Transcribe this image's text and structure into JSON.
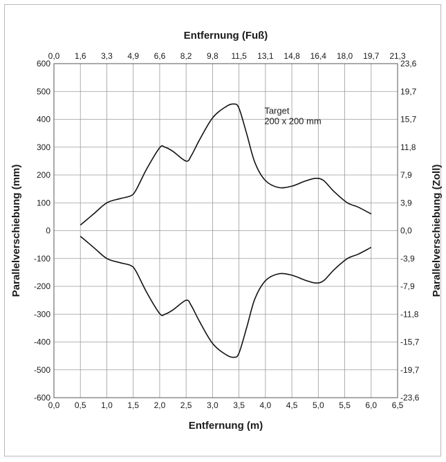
{
  "chart_data": {
    "type": "line",
    "title": "",
    "xlabel": "Entfernung (m)",
    "ylabel": "Parallelverschiebung (mm)",
    "x2label": "Entfernung (Fuß)",
    "y2label": "Parallelverschiebung (Zoll)",
    "xlim": [
      0,
      6.5
    ],
    "ylim": [
      -600,
      600
    ],
    "grid": true,
    "x_ticks": [
      "0,0",
      "0,5",
      "1,0",
      "1,5",
      "2,0",
      "2,5",
      "3,0",
      "3,5",
      "4,0",
      "4,5",
      "5,0",
      "5,5",
      "6,0",
      "6,5"
    ],
    "y_ticks": [
      "600",
      "500",
      "400",
      "300",
      "200",
      "100",
      "0",
      "-100",
      "-200",
      "-300",
      "-400",
      "-500",
      "-600"
    ],
    "x2_ticks": [
      "0,0",
      "1,6",
      "3,3",
      "4,9",
      "6,6",
      "8,2",
      "9,8",
      "11,5",
      "13,1",
      "14,8",
      "16,4",
      "18,0",
      "19,7",
      "21,3"
    ],
    "y2_ticks": [
      "23,6",
      "19,7",
      "15,7",
      "11,8",
      "7,9",
      "3,9",
      "0,0",
      "-3,9",
      "-7,9",
      "-11,8",
      "-15,7",
      "-19,7",
      "-23,6"
    ],
    "annotation": {
      "line1": "Target",
      "line2": "200 x 200 mm",
      "x": 3.98,
      "y": 420
    },
    "series": [
      {
        "x": [
          0.5,
          0.75,
          1.0,
          1.25,
          1.45,
          1.55,
          1.75,
          2.0,
          2.1,
          2.25,
          2.5,
          2.6,
          2.75,
          3.0,
          3.25,
          3.4,
          3.5,
          3.65,
          3.8,
          4.0,
          4.25,
          4.5,
          4.75,
          4.95,
          5.1,
          5.3,
          5.55,
          5.75,
          6.0
        ],
        "y": [
          20,
          60,
          100,
          115,
          125,
          145,
          220,
          298,
          300,
          285,
          250,
          270,
          325,
          405,
          445,
          455,
          440,
          345,
          245,
          180,
          155,
          160,
          178,
          188,
          180,
          140,
          100,
          85,
          60
        ]
      },
      {
        "x": [
          0.5,
          0.75,
          1.0,
          1.25,
          1.45,
          1.55,
          1.75,
          2.0,
          2.1,
          2.25,
          2.5,
          2.6,
          2.75,
          3.0,
          3.25,
          3.4,
          3.5,
          3.65,
          3.8,
          4.0,
          4.25,
          4.5,
          4.75,
          4.95,
          5.1,
          5.3,
          5.55,
          5.75,
          6.0
        ],
        "y": [
          -20,
          -60,
          -100,
          -115,
          -125,
          -145,
          -220,
          -298,
          -300,
          -285,
          -250,
          -270,
          -325,
          -405,
          -445,
          -455,
          -440,
          -345,
          -245,
          -180,
          -155,
          -160,
          -178,
          -188,
          -180,
          -140,
          -100,
          -85,
          -60
        ]
      }
    ]
  }
}
